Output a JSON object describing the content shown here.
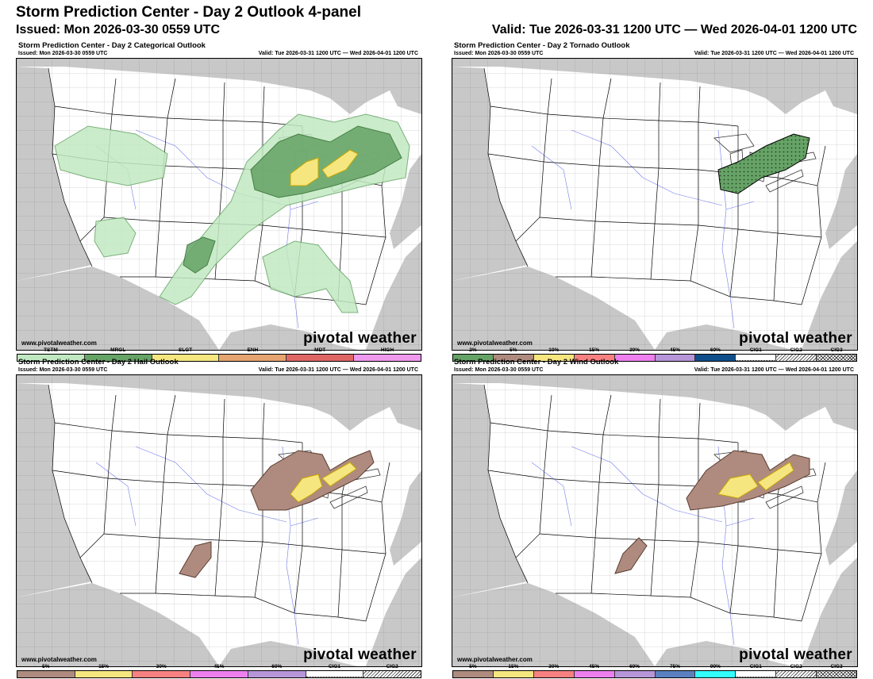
{
  "header": {
    "title": "Storm Prediction Center - Day 2 Outlook 4-panel",
    "issued": "Issued: Mon 2026-03-30 0559 UTC",
    "valid": "Valid: Tue 2026-03-31 1200 UTC — Wed 2026-04-01 1200 UTC"
  },
  "colors": {
    "land": "#ffffff",
    "water_outside": "#c8c8c8",
    "tstm": "#c1e9c1",
    "mrgl": "#66a366",
    "slgt": "#f6e67f",
    "enh": "#e6a470",
    "mdt": "#e06666",
    "high": "#ee99ee",
    "prob5": "#ae8b7e",
    "prob15": "#f6e67f",
    "prob30": "#f78080",
    "prob45": "#ee7fee",
    "prob60": "#b695d9",
    "prob75": "#5a80c0",
    "prob90": "#33ffff",
    "torn2": "#66a366",
    "torn60": "#104e8b"
  },
  "panels": {
    "categorical": {
      "title": "Storm Prediction Center - Day 2 Categorical Outlook",
      "issued": "Issued: Mon 2026-03-30 0559 UTC",
      "valid": "Valid: Tue 2026-03-31 1200 UTC — Wed 2026-04-01 1200 UTC",
      "site": "www.pivotalweather.com",
      "brand": "pivotal weather",
      "legend": [
        "TSTM",
        "MRGL",
        "SLGT",
        "ENH",
        "MDT",
        "HIGH"
      ]
    },
    "tornado": {
      "title": "Storm Prediction Center - Day 2 Tornado Outlook",
      "issued": "Issued: Mon 2026-03-30 0559 UTC",
      "valid": "Valid: Tue 2026-03-31 1200 UTC — Wed 2026-04-01 1200 UTC",
      "site": "www.pivotalweather.com",
      "brand": "pivotal weather",
      "legend": [
        "2%",
        "5%",
        "10%",
        "15%",
        "30%",
        "45%",
        "60%",
        "CIG1",
        "CIG2",
        "CIG3"
      ]
    },
    "hail": {
      "title": "Storm Prediction Center - Day 2 Hail Outlook",
      "issued": "Issued: Mon 2026-03-30 0559 UTC",
      "valid": "Valid: Tue 2026-03-31 1200 UTC — Wed 2026-04-01 1200 UTC",
      "site": "www.pivotalweather.com",
      "brand": "pivotal weather",
      "legend": [
        "5%",
        "15%",
        "30%",
        "45%",
        "60%",
        "CIG1",
        "CIG2"
      ]
    },
    "wind": {
      "title": "Storm Prediction Center - Day 2 Wind Outlook",
      "issued": "Issued: Mon 2026-03-30 0559 UTC",
      "valid": "Valid: Tue 2026-03-31 1200 UTC — Wed 2026-04-01 1200 UTC",
      "site": "www.pivotalweather.com",
      "brand": "pivotal weather",
      "legend": [
        "5%",
        "15%",
        "30%",
        "45%",
        "60%",
        "75%",
        "90%",
        "CIG1",
        "CIG2",
        "CIG3"
      ]
    }
  }
}
